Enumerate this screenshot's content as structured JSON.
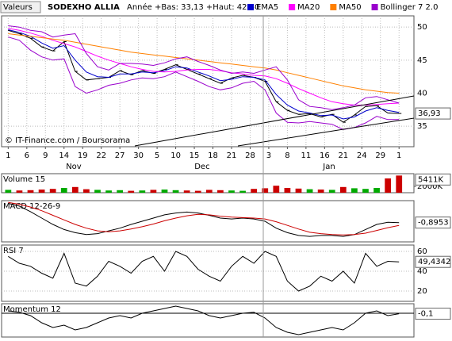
{
  "chart_data": [
    {
      "type": "line",
      "selector": "Valeurs",
      "title": "SODEXHO ALLIA",
      "subtitle": "Année +Bas: 33,13 +Haut: 42,80",
      "source": "© IT-Finance.com / Boursorama",
      "x": [
        0,
        3,
        6,
        9,
        12,
        15,
        18,
        21,
        24,
        27,
        30,
        33,
        36,
        39,
        42,
        45,
        48,
        51,
        54,
        57,
        60,
        63,
        66,
        69,
        72,
        75,
        78,
        81,
        84,
        87,
        90,
        93,
        96,
        99,
        102,
        105
      ],
      "xlim": [
        -0.5,
        109
      ],
      "xticks": [
        {
          "value": 0,
          "label": "1"
        },
        {
          "value": 5,
          "label": "6"
        },
        {
          "value": 10,
          "label": "9"
        },
        {
          "value": 15,
          "label": "14"
        },
        {
          "value": 20,
          "label": "19"
        },
        {
          "value": 25,
          "label": "22"
        },
        {
          "value": 30,
          "label": "27"
        },
        {
          "value": 35,
          "label": "30"
        },
        {
          "value": 40,
          "label": "5"
        },
        {
          "value": 45,
          "label": "10"
        },
        {
          "value": 50,
          "label": "15"
        },
        {
          "value": 55,
          "label": "18"
        },
        {
          "value": 60,
          "label": "21"
        },
        {
          "value": 65,
          "label": "28"
        },
        {
          "value": 70,
          "label": "3"
        },
        {
          "value": 75,
          "label": "8"
        },
        {
          "value": 80,
          "label": "11"
        },
        {
          "value": 85,
          "label": "16"
        },
        {
          "value": 90,
          "label": "21"
        },
        {
          "value": 95,
          "label": "24"
        },
        {
          "value": 100,
          "label": "29"
        },
        {
          "value": 105,
          "label": "1"
        }
      ],
      "month_ticks": [
        {
          "value": 17.6,
          "label": "Nov"
        },
        {
          "value": 52.1,
          "label": "Dec"
        },
        {
          "value": 86.2,
          "label": "Jan"
        }
      ],
      "ylim": [
        31.9,
        51.7
      ],
      "yticks": [
        35,
        40,
        45,
        50
      ],
      "grid": true,
      "series": [
        {
          "color": "#000000",
          "values": [
            49.5,
            49,
            48.3,
            47,
            46.4,
            47.8,
            43.3,
            42,
            42.2,
            42.4,
            43.4,
            42.8,
            43.4,
            43,
            43.6,
            44.3,
            43.6,
            42.9,
            42.2,
            41.5,
            42.3,
            42.7,
            42.4,
            41.8,
            38.7,
            37.4,
            36.8,
            36.9,
            36.4,
            36.8,
            35.6,
            36.7,
            38,
            38.1,
            37,
            36.93
          ],
          "value_labels": [
            null,
            null,
            null,
            null,
            null,
            null,
            null,
            null,
            null,
            null,
            null,
            null,
            null,
            null,
            null,
            null,
            null,
            null,
            null,
            null,
            null,
            null,
            null,
            null,
            null,
            null,
            null,
            null,
            null,
            null,
            null,
            null,
            null,
            null,
            null,
            "36,93"
          ]
        },
        {
          "name": "EMA5",
          "color": "#0000cc",
          "values": [
            49.6,
            49.2,
            48.6,
            47.6,
            46.8,
            47.2,
            45,
            43.2,
            42.5,
            42.4,
            42.9,
            42.9,
            43.2,
            43.1,
            43.4,
            44,
            43.8,
            43.2,
            42.6,
            41.9,
            42.1,
            42.5,
            42.4,
            42,
            39.8,
            38.2,
            37.3,
            37,
            36.6,
            36.7,
            36.1,
            36.4,
            37.3,
            37.8,
            37.4,
            37.1
          ]
        },
        {
          "name": "MA20",
          "color": "#ff00ff",
          "values": [
            49.8,
            49.5,
            49.1,
            48.6,
            48,
            47.5,
            47,
            46.3,
            45.6,
            45,
            44.5,
            44,
            43.6,
            43.3,
            43.2,
            43.3,
            43.5,
            43.6,
            43.6,
            43.4,
            43.1,
            42.9,
            42.7,
            42.6,
            42.2,
            41.5,
            40.7,
            40,
            39.3,
            38.7,
            38.4,
            38.2,
            38.2,
            38.3,
            38.4,
            38.5
          ]
        },
        {
          "name": "MA50",
          "color": "#ff8000",
          "values": [
            49,
            48.8,
            48.6,
            48.4,
            48.2,
            48,
            47.7,
            47.4,
            47.1,
            46.8,
            46.5,
            46.2,
            46,
            45.8,
            45.6,
            45.4,
            45.2,
            45,
            44.8,
            44.6,
            44.4,
            44.2,
            44,
            43.8,
            43.5,
            43.1,
            42.7,
            42.3,
            41.9,
            41.5,
            41.1,
            40.8,
            40.5,
            40.3,
            40.1,
            40
          ]
        },
        {
          "name": "Bollinger 7 2.0",
          "color": "#9900cc",
          "upper": [
            50.2,
            50,
            49.5,
            49.3,
            48.5,
            48.8,
            49,
            46,
            44,
            43.5,
            44.5,
            44.5,
            44.4,
            44.2,
            44.6,
            45.2,
            45.5,
            44.8,
            44.2,
            43.5,
            43,
            43.2,
            43,
            43.5,
            44,
            42,
            39,
            38,
            37.8,
            37.5,
            37.8,
            38.2,
            39.3,
            39.5,
            39,
            38.5
          ],
          "lower": [
            48.5,
            48,
            46.5,
            45.5,
            45,
            45.2,
            41,
            40,
            40.5,
            41.2,
            41.5,
            42,
            42.3,
            42.2,
            42.5,
            43.2,
            42.5,
            41.8,
            41,
            40.5,
            40.8,
            41.5,
            41.8,
            40.5,
            37,
            35.6,
            35.5,
            35.7,
            35.5,
            35.3,
            34.5,
            34.8,
            35.5,
            36.5,
            36,
            36
          ]
        }
      ]
    },
    {
      "type": "bar",
      "title": "Volume 15",
      "ylim": [
        0,
        6000
      ],
      "yticks": [
        {
          "value": 2000,
          "label": "2000K"
        }
      ],
      "up_color": "#00aa00",
      "down_color": "#cc0000",
      "values": [
        900,
        700,
        800,
        1000,
        1200,
        1500,
        1800,
        1100,
        900,
        700,
        800,
        600,
        700,
        900,
        1000,
        800,
        700,
        600,
        900,
        800,
        700,
        600,
        1200,
        1400,
        2200,
        1500,
        1300,
        1100,
        1000,
        900,
        1800,
        1400,
        1200,
        1500,
        4500,
        5411
      ],
      "value_labels": [
        null,
        null,
        null,
        null,
        null,
        null,
        null,
        null,
        null,
        null,
        null,
        null,
        null,
        null,
        null,
        null,
        null,
        null,
        null,
        null,
        null,
        null,
        null,
        null,
        null,
        null,
        null,
        null,
        null,
        null,
        null,
        null,
        null,
        null,
        null,
        "5411K"
      ]
    },
    {
      "type": "line",
      "title": "MACD 12-26-9",
      "ylim": [
        -3,
        1.5
      ],
      "series": [
        {
          "color": "#000000",
          "values": [
            1.2,
            0.9,
            0.3,
            -0.4,
            -1.1,
            -1.65,
            -2,
            -2.2,
            -2.1,
            -1.8,
            -1.5,
            -1.1,
            -0.75,
            -0.4,
            -0.05,
            0.15,
            0.25,
            0.15,
            -0.1,
            -0.4,
            -0.5,
            -0.4,
            -0.5,
            -0.75,
            -1.5,
            -2,
            -2.3,
            -2.4,
            -2.3,
            -2.3,
            -2.4,
            -2.2,
            -1.65,
            -1.1,
            -0.85,
            -0.8953
          ],
          "value_labels": [
            null,
            null,
            null,
            null,
            null,
            null,
            null,
            null,
            null,
            null,
            null,
            null,
            null,
            null,
            null,
            null,
            null,
            null,
            null,
            null,
            null,
            null,
            null,
            null,
            null,
            null,
            null,
            null,
            null,
            null,
            null,
            null,
            null,
            null,
            null,
            "-0,8953"
          ]
        },
        {
          "color": "#cc0000",
          "values": [
            1.3,
            1.1,
            0.8,
            0.4,
            -0.1,
            -0.6,
            -1.1,
            -1.5,
            -1.8,
            -1.9,
            -1.8,
            -1.6,
            -1.35,
            -1.05,
            -0.7,
            -0.4,
            -0.15,
            0,
            -0.05,
            -0.2,
            -0.3,
            -0.35,
            -0.4,
            -0.5,
            -0.8,
            -1.2,
            -1.6,
            -1.95,
            -2.1,
            -2.2,
            -2.25,
            -2.2,
            -2.05,
            -1.75,
            -1.45,
            -1.2
          ]
        }
      ]
    },
    {
      "type": "line",
      "title": "RSI 7",
      "ylim": [
        9.6,
        66.4
      ],
      "yticks": [
        20,
        40,
        60
      ],
      "grid": true,
      "series": [
        {
          "color": "#000000",
          "values": [
            55,
            48,
            45,
            38,
            33,
            58,
            28,
            25,
            35,
            50,
            45,
            38,
            50,
            55,
            40,
            60,
            55,
            42,
            35,
            30,
            45,
            55,
            48,
            60,
            55,
            30,
            20,
            25,
            35,
            30,
            40,
            28,
            58,
            45,
            50,
            49.4342
          ],
          "value_labels": [
            null,
            null,
            null,
            null,
            null,
            null,
            null,
            null,
            null,
            null,
            null,
            null,
            null,
            null,
            null,
            null,
            null,
            null,
            null,
            null,
            null,
            null,
            null,
            null,
            null,
            null,
            null,
            null,
            null,
            null,
            null,
            null,
            null,
            null,
            null,
            "49,4342"
          ]
        }
      ]
    },
    {
      "type": "line",
      "title": "Momentum 12",
      "ylim": [
        -5,
        2
      ],
      "zero_line": true,
      "series": [
        {
          "color": "#000000",
          "values": [
            0.5,
            0.2,
            -0.5,
            -2,
            -3,
            -2.5,
            -3.5,
            -3,
            -2,
            -1,
            -0.5,
            -1,
            0,
            0.5,
            1,
            1.5,
            1,
            0.5,
            -0.5,
            -1,
            -0.5,
            0,
            0.2,
            -1,
            -3,
            -4,
            -4.5,
            -4,
            -3.5,
            -3,
            -3.5,
            -2,
            0,
            0.5,
            -0.5,
            -0.1
          ],
          "value_labels": [
            null,
            null,
            null,
            null,
            null,
            null,
            null,
            null,
            null,
            null,
            null,
            null,
            null,
            null,
            null,
            null,
            null,
            null,
            null,
            null,
            null,
            null,
            null,
            null,
            null,
            null,
            null,
            null,
            null,
            null,
            null,
            null,
            null,
            null,
            null,
            "-0,1"
          ]
        }
      ]
    }
  ]
}
